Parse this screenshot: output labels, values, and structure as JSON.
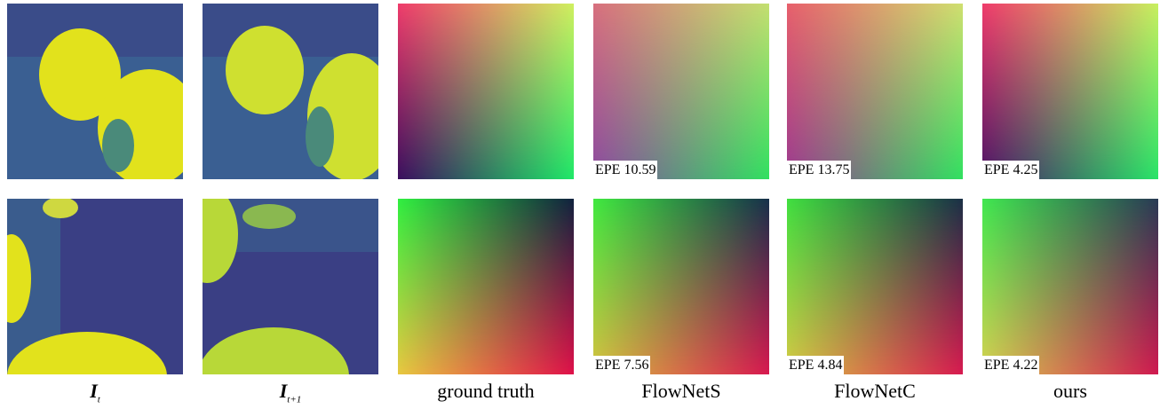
{
  "columns": [
    {
      "main": "I",
      "sub": "t"
    },
    {
      "main": "I",
      "sub": "t+1"
    },
    {
      "label": "ground truth"
    },
    {
      "label": "FlowNetS"
    },
    {
      "label": "FlowNetC"
    },
    {
      "label": "ours"
    }
  ],
  "rows": [
    {
      "epe": [
        "EPE 10.59",
        "EPE 13.75",
        "EPE 4.25"
      ]
    },
    {
      "epe": [
        "EPE 7.56",
        "EPE 4.84",
        "EPE 4.22"
      ]
    }
  ]
}
